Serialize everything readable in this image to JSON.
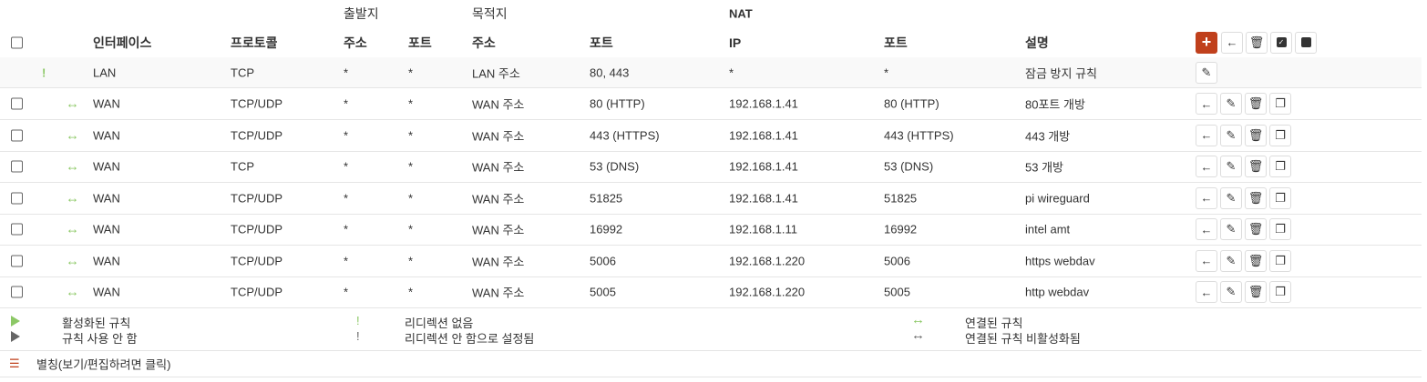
{
  "header_top": {
    "source": "출발지",
    "destination": "목적지",
    "nat": "NAT"
  },
  "header": {
    "interface": "인터페이스",
    "protocol": "프로토콜",
    "src_addr": "주소",
    "src_port": "포트",
    "dst_addr": "주소",
    "dst_port": "포트",
    "nat_ip": "IP",
    "nat_port": "포트",
    "description": "설명"
  },
  "header_actions": [
    "add-icon",
    "arrow-left-icon",
    "trash-icon",
    "check-square-icon",
    "square-icon"
  ],
  "lan_row": {
    "status": "!",
    "interface": "LAN",
    "protocol": "TCP",
    "src_addr": "*",
    "src_port": "*",
    "dst_addr": "LAN 주소",
    "dst_port": "80, 443",
    "nat_ip": "*",
    "nat_port": "*",
    "description": "잠금 방지 규칙"
  },
  "rules": [
    {
      "interface": "WAN",
      "protocol": "TCP/UDP",
      "src_addr": "*",
      "src_port": "*",
      "dst_addr": "WAN 주소",
      "dst_port": "80 (HTTP)",
      "nat_ip": "192.168.1.41",
      "nat_port": "80 (HTTP)",
      "description": "80포트 개방"
    },
    {
      "interface": "WAN",
      "protocol": "TCP/UDP",
      "src_addr": "*",
      "src_port": "*",
      "dst_addr": "WAN 주소",
      "dst_port": "443 (HTTPS)",
      "nat_ip": "192.168.1.41",
      "nat_port": "443 (HTTPS)",
      "description": "443 개방"
    },
    {
      "interface": "WAN",
      "protocol": "TCP",
      "src_addr": "*",
      "src_port": "*",
      "dst_addr": "WAN 주소",
      "dst_port": "53 (DNS)",
      "nat_ip": "192.168.1.41",
      "nat_port": "53 (DNS)",
      "description": "53 개방"
    },
    {
      "interface": "WAN",
      "protocol": "TCP/UDP",
      "src_addr": "*",
      "src_port": "*",
      "dst_addr": "WAN 주소",
      "dst_port": "51825",
      "nat_ip": "192.168.1.41",
      "nat_port": "51825",
      "description": "pi wireguard"
    },
    {
      "interface": "WAN",
      "protocol": "TCP/UDP",
      "src_addr": "*",
      "src_port": "*",
      "dst_addr": "WAN 주소",
      "dst_port": "16992",
      "nat_ip": "192.168.1.11",
      "nat_port": "16992",
      "description": "intel amt"
    },
    {
      "interface": "WAN",
      "protocol": "TCP/UDP",
      "src_addr": "*",
      "src_port": "*",
      "dst_addr": "WAN 주소",
      "dst_port": "5006",
      "nat_ip": "192.168.1.220",
      "nat_port": "5006",
      "description": "https webdav"
    },
    {
      "interface": "WAN",
      "protocol": "TCP/UDP",
      "src_addr": "*",
      "src_port": "*",
      "dst_addr": "WAN 주소",
      "dst_port": "5005",
      "nat_ip": "192.168.1.220",
      "nat_port": "5005",
      "description": "http webdav"
    }
  ],
  "legend": {
    "enabled": "활성화된 규칙",
    "disabled": "규칙 사용 안 함",
    "no_redirect": "리디렉션 없음",
    "no_redirect_disabled": "리디렉션 안 함으로 설정됨",
    "linked": "연결된 규칙",
    "linked_disabled": "연결된 규칙 비활성화됨",
    "symbols": {
      "exclaim": "!",
      "arrow": "↔"
    }
  },
  "alias_link": "별칭(보기/편집하려면 클릭)",
  "colors": {
    "accent": "#c0401c",
    "green": "#8cc866",
    "gray": "#666666"
  }
}
